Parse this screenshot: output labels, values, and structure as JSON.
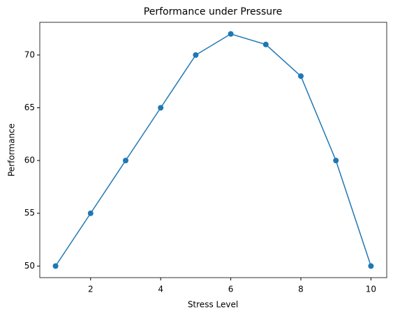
{
  "chart_data": {
    "type": "line",
    "title": "Performance under Pressure",
    "x_label": "Stress Level",
    "y_label": "Performance",
    "x": [
      1,
      2,
      3,
      4,
      5,
      6,
      7,
      8,
      9,
      10
    ],
    "series": [
      {
        "color": "#1f77b4",
        "values": [
          50,
          55,
          60,
          65,
          70,
          72,
          71,
          68,
          60,
          50
        ]
      }
    ],
    "xlim": [
      0.55,
      10.45
    ],
    "ylim": [
      48.9,
      73.1
    ],
    "xticks": [
      2,
      4,
      6,
      8,
      10
    ],
    "yticks": [
      50,
      55,
      60,
      65,
      70
    ],
    "grid": false
  }
}
